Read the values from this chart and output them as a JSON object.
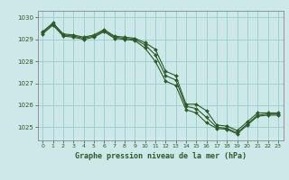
{
  "title": "Graphe pression niveau de la mer (hPa)",
  "background_color": "#cce8e8",
  "grid_color": "#99cccc",
  "line_color": "#2d5a27",
  "xlim": [
    -0.5,
    23.5
  ],
  "ylim": [
    1024.4,
    1030.3
  ],
  "yticks": [
    1025,
    1026,
    1027,
    1028,
    1029,
    1030
  ],
  "xticks": [
    0,
    1,
    2,
    3,
    4,
    5,
    6,
    7,
    8,
    9,
    10,
    11,
    12,
    13,
    14,
    15,
    16,
    17,
    18,
    19,
    20,
    21,
    22,
    23
  ],
  "series": [
    {
      "x": [
        0,
        1,
        2,
        3,
        4,
        5,
        6,
        7,
        8,
        9,
        10,
        11,
        12,
        13,
        14,
        15,
        16,
        17,
        18,
        19,
        20,
        21,
        22,
        23
      ],
      "y": [
        1029.35,
        1029.75,
        1029.25,
        1029.2,
        1029.1,
        1029.2,
        1029.45,
        1029.15,
        1029.1,
        1029.05,
        1028.85,
        1028.55,
        1027.55,
        1027.35,
        1026.05,
        1026.05,
        1025.75,
        1025.1,
        1025.05,
        1024.85,
        1025.25,
        1025.65,
        1025.65,
        1025.65
      ]
    },
    {
      "x": [
        0,
        1,
        2,
        3,
        4,
        5,
        6,
        7,
        8,
        9,
        10,
        11,
        12,
        13,
        14,
        15,
        16,
        17,
        18,
        19,
        20,
        21,
        22,
        23
      ],
      "y": [
        1029.3,
        1029.7,
        1029.2,
        1029.15,
        1029.05,
        1029.15,
        1029.4,
        1029.1,
        1029.05,
        1029.0,
        1028.75,
        1028.3,
        1027.35,
        1027.15,
        1025.95,
        1025.85,
        1025.45,
        1025.0,
        1024.95,
        1024.75,
        1025.15,
        1025.55,
        1025.6,
        1025.6
      ]
    },
    {
      "x": [
        0,
        1,
        2,
        3,
        4,
        5,
        6,
        7,
        8,
        9,
        10,
        11,
        12,
        13,
        14,
        15,
        16,
        17,
        18,
        19,
        20,
        21,
        22,
        23
      ],
      "y": [
        1029.25,
        1029.65,
        1029.15,
        1029.1,
        1029.0,
        1029.1,
        1029.35,
        1029.05,
        1029.0,
        1028.95,
        1028.6,
        1028.0,
        1027.1,
        1026.9,
        1025.8,
        1025.65,
        1025.2,
        1024.95,
        1024.9,
        1024.7,
        1025.1,
        1025.5,
        1025.55,
        1025.55
      ]
    }
  ],
  "figsize": [
    3.2,
    2.0
  ],
  "dpi": 100
}
